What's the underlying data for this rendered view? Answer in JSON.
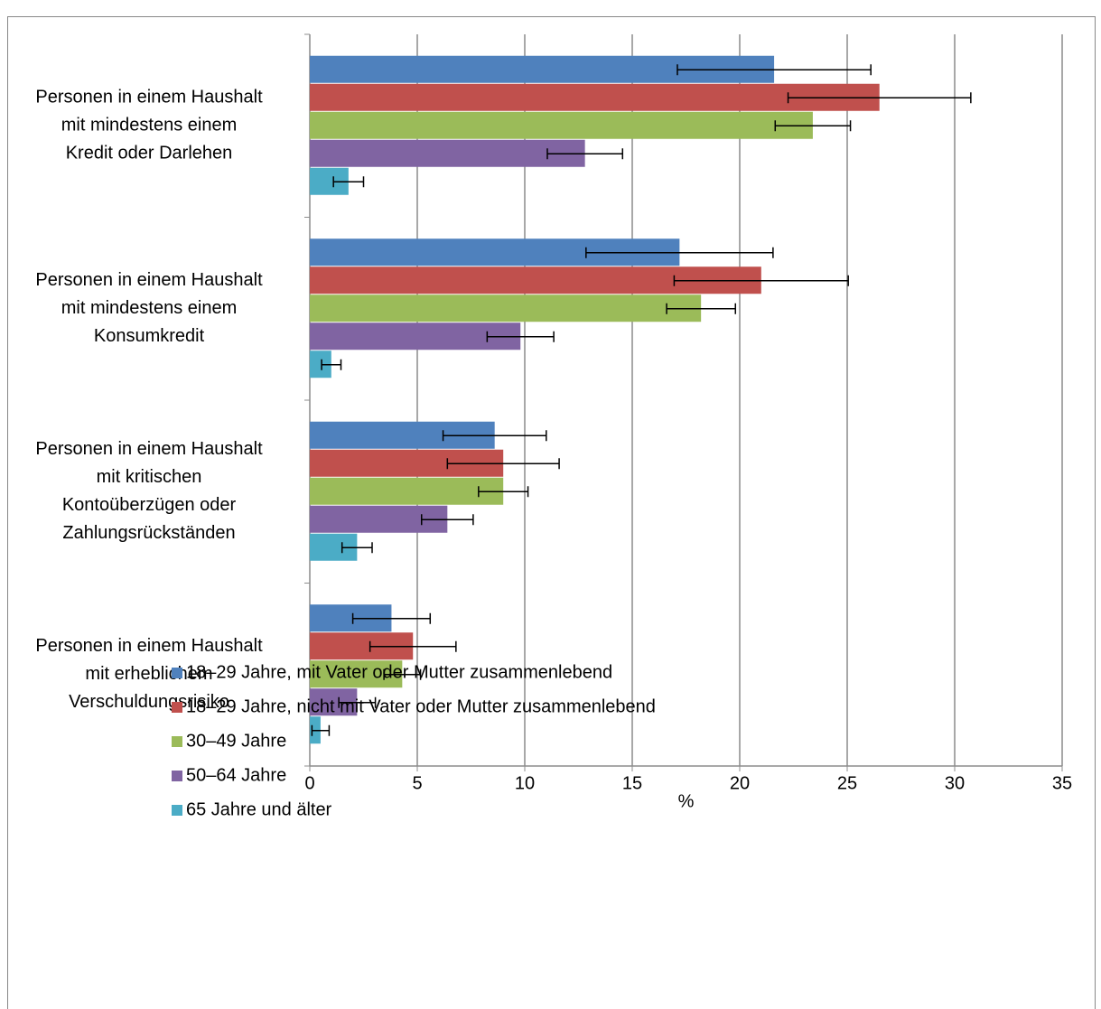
{
  "chart_data": {
    "type": "bar",
    "orientation": "horizontal",
    "x_label": "%",
    "categories": [
      [
        "Personen in einem Haushalt",
        "mit mindestens einem",
        "Kredit oder Darlehen"
      ],
      [
        "Personen in einem Haushalt",
        "mit mindestens einem",
        "Konsumkredit"
      ],
      [
        "Personen in einem Haushalt",
        "mit kritischen",
        "Kontoüberzügen oder",
        "Zahlungsrückständen"
      ],
      [
        "Personen in einem Haushalt",
        "mit erheblichem",
        "Verschuldungsrisiko"
      ]
    ],
    "series": [
      {
        "name": "18–29 Jahre, mit Vater oder Mutter zusammenlebend",
        "color": "#4f81bd",
        "values": [
          21.6,
          17.2,
          8.6,
          3.8
        ],
        "errors": [
          4.5,
          4.35,
          2.4,
          1.8
        ]
      },
      {
        "name": "18–29 Jahre, nicht mit Vater oder Mutter zusammenlebend",
        "color": "#c0504d",
        "values": [
          26.5,
          21.0,
          9.0,
          4.8
        ],
        "errors": [
          4.25,
          4.05,
          2.6,
          2.0
        ]
      },
      {
        "name": "30–49 Jahre",
        "color": "#9bbb59",
        "values": [
          23.4,
          18.2,
          9.0,
          4.3
        ],
        "errors": [
          1.75,
          1.6,
          1.15,
          0.85
        ]
      },
      {
        "name": "50–64 Jahre",
        "color": "#8064a2",
        "values": [
          12.8,
          9.8,
          6.4,
          2.2
        ],
        "errors": [
          1.75,
          1.55,
          1.2,
          0.85
        ]
      },
      {
        "name": "65 Jahre und älter",
        "color": "#4bacc6",
        "values": [
          1.8,
          1.0,
          2.2,
          0.5
        ],
        "errors": [
          0.7,
          0.45,
          0.7,
          0.4
        ]
      }
    ],
    "xlim": [
      0,
      35
    ],
    "xticks": [
      0,
      5,
      10,
      15,
      20,
      25,
      30,
      35
    ],
    "grid": true,
    "legend": "bottom"
  }
}
